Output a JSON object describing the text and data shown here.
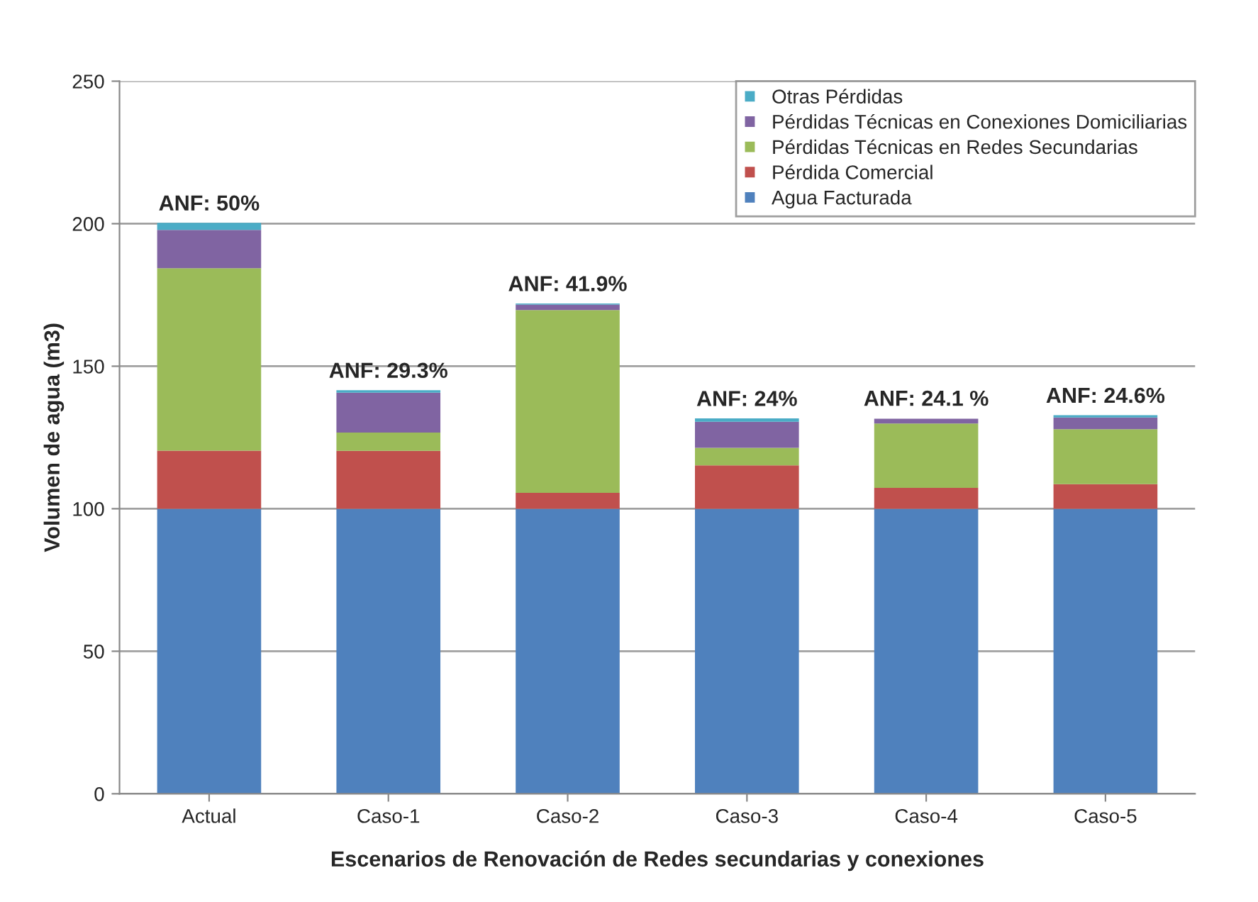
{
  "chart_data": {
    "type": "bar",
    "stacked": true,
    "xlabel": "Escenarios de Renovación de Redes secundarias y conexiones",
    "ylabel": "Volumen de agua (m3)",
    "categories": [
      "Actual",
      "Caso-1",
      "Caso-2",
      "Caso-3",
      "Caso-4",
      "Caso-5"
    ],
    "series": [
      {
        "name": "Agua Facturada",
        "color": "#4f81bd",
        "values": [
          100,
          100,
          100,
          100,
          100,
          100
        ]
      },
      {
        "name": "Pérdida Comercial",
        "color": "#c0504d",
        "values": [
          20.4,
          20.3,
          5.6,
          15.2,
          7.3,
          8.6
        ]
      },
      {
        "name": "Pérdidas Técnicas en Redes Secundarias",
        "color": "#9bbb59",
        "values": [
          64,
          6.4,
          64.1,
          6.2,
          22.6,
          19.3
        ]
      },
      {
        "name": "Pérdidas Técnicas en Conexiones Domiciliarias",
        "color": "#8064a2",
        "values": [
          13.4,
          14,
          1.9,
          9.1,
          1.7,
          4.1
        ]
      },
      {
        "name": "Otras Pérdidas",
        "color": "#4bacc6",
        "values": [
          2.5,
          0.9,
          0.4,
          1.2,
          null,
          0.8
        ]
      }
    ],
    "ylim": [
      0,
      250
    ],
    "yticks": [
      0,
      50,
      100,
      150,
      200,
      250
    ],
    "grid": "y",
    "legend": "top right",
    "annotations": [
      {
        "text": "ANF: 50%",
        "x": "Actual",
        "y": 200.3
      },
      {
        "text": "ANF: 29.3%",
        "x": "Caso-1",
        "y": 141.6
      },
      {
        "text": "ANF: 41.9%",
        "x": "Caso-2",
        "y": 172
      },
      {
        "text": "ANF: 24%",
        "x": "Caso-3",
        "y": 131.7
      },
      {
        "text": "ANF: 24.1 %",
        "x": "Caso-4",
        "y": 131.8
      },
      {
        "text": "ANF: 24.6%",
        "x": "Caso-5",
        "y": 132.8
      }
    ]
  }
}
